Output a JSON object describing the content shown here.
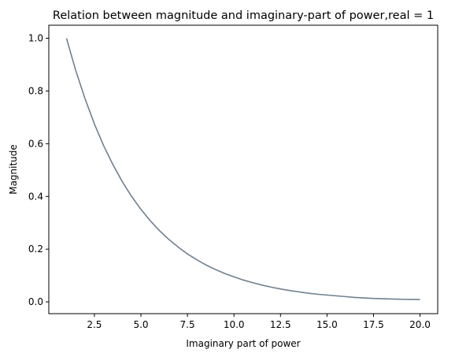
{
  "chart_data": {
    "type": "line",
    "title": "Relation between magnitude and imaginary-part of power,real = 1",
    "xlabel": "Imaginary part of power",
    "ylabel": "Magnitude",
    "xlim": [
      0.05,
      20.95
    ],
    "ylim": [
      -0.0446,
      1.0495
    ],
    "xticks": [
      2.5,
      5.0,
      7.5,
      10.0,
      12.5,
      15.0,
      17.5,
      20.0
    ],
    "xtick_labels": [
      "2.5",
      "5.0",
      "7.5",
      "10.0",
      "12.5",
      "15.0",
      "17.5",
      "20.0"
    ],
    "yticks": [
      0.0,
      0.2,
      0.4,
      0.6,
      0.8,
      1.0
    ],
    "ytick_labels": [
      "0.0",
      "0.2",
      "0.4",
      "0.6",
      "0.8",
      "1.0"
    ],
    "grid": false,
    "line_color": "#708090",
    "series": [
      {
        "x": [
          1,
          1.5,
          2,
          2.5,
          3,
          3.5,
          4,
          4.5,
          5,
          5.5,
          6,
          6.5,
          7,
          7.5,
          8,
          8.5,
          9,
          9.5,
          10,
          10.5,
          11,
          11.5,
          12,
          12.5,
          13,
          13.5,
          14,
          14.5,
          15,
          15.5,
          16,
          16.5,
          17,
          17.5,
          18,
          18.5,
          19,
          19.5,
          20
        ],
        "y": [
          1.0,
          0.877,
          0.77,
          0.675,
          0.592,
          0.52,
          0.456,
          0.4,
          0.351,
          0.308,
          0.27,
          0.237,
          0.208,
          0.182,
          0.16,
          0.14,
          0.123,
          0.108,
          0.095,
          0.083,
          0.073,
          0.064,
          0.056,
          0.049,
          0.043,
          0.038,
          0.033,
          0.029,
          0.026,
          0.023,
          0.02,
          0.017,
          0.015,
          0.013,
          0.012,
          0.011,
          0.01,
          0.0095,
          0.009
        ]
      }
    ]
  }
}
